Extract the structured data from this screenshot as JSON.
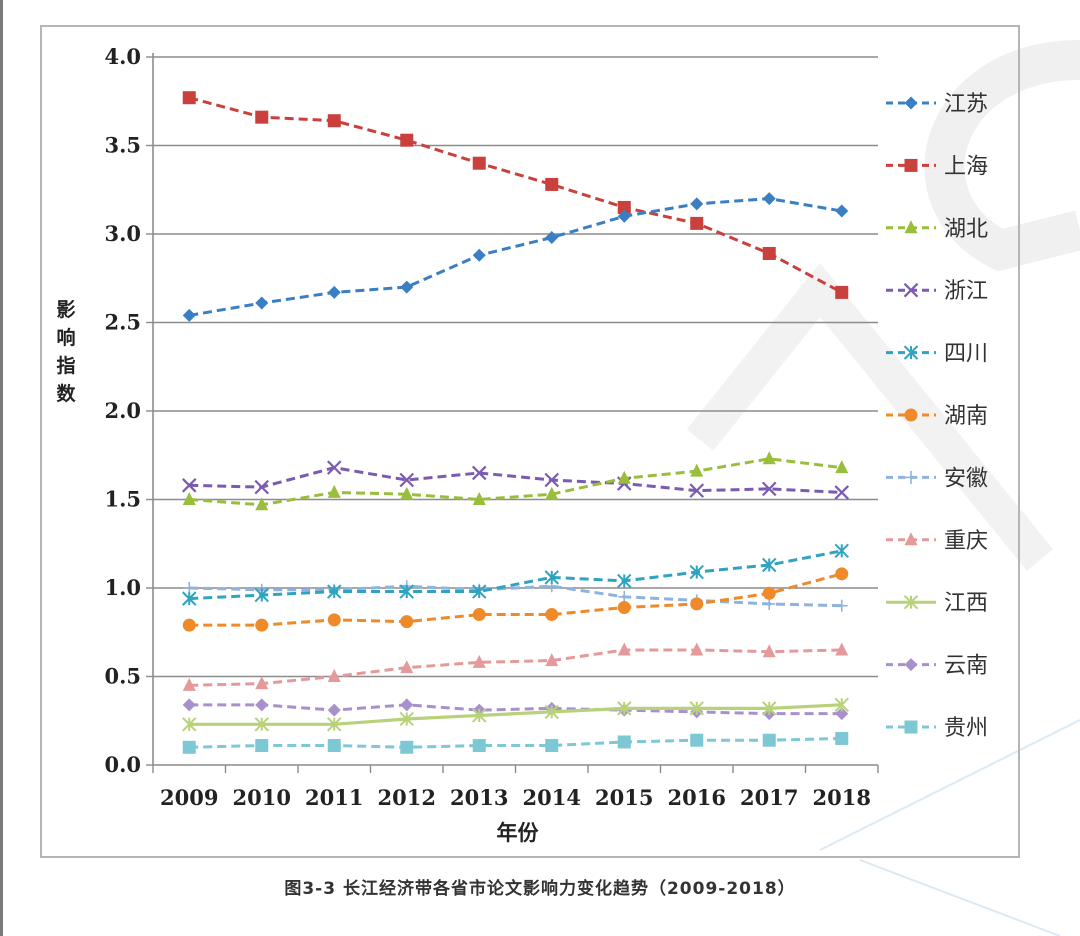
{
  "chart_data": {
    "type": "line",
    "title": "",
    "caption": "图3-3 长江经济带各省市论文影响力变化趋势（2009-2018）",
    "xlabel": "年份",
    "ylabel": "影响指数",
    "ylabel_chars": [
      "影",
      "响",
      "指",
      "数"
    ],
    "ylim": [
      0,
      4.0
    ],
    "yticks": [
      "0.0",
      "0.5",
      "1.0",
      "1.5",
      "2.0",
      "2.5",
      "3.0",
      "3.5",
      "4.0"
    ],
    "ytick_values": [
      0,
      0.5,
      1.0,
      1.5,
      2.0,
      2.5,
      3.0,
      3.5,
      4.0
    ],
    "grid": "horizontal",
    "legend_position": "right",
    "categories": [
      "2009",
      "2010",
      "2011",
      "2012",
      "2013",
      "2014",
      "2015",
      "2016",
      "2017",
      "2018"
    ],
    "series": [
      {
        "name": "江苏",
        "color": "#3a7fc4",
        "marker": "diamond",
        "dash": true,
        "values": [
          2.54,
          2.61,
          2.67,
          2.7,
          2.88,
          2.98,
          3.1,
          3.17,
          3.2,
          3.13
        ]
      },
      {
        "name": "上海",
        "color": "#c9403c",
        "marker": "square",
        "dash": true,
        "values": [
          3.77,
          3.66,
          3.64,
          3.53,
          3.4,
          3.28,
          3.15,
          3.06,
          2.89,
          2.67
        ]
      },
      {
        "name": "湖北",
        "color": "#98be3c",
        "marker": "triangle",
        "dash": true,
        "values": [
          1.5,
          1.47,
          1.54,
          1.53,
          1.5,
          1.53,
          1.62,
          1.66,
          1.73,
          1.68
        ]
      },
      {
        "name": "浙江",
        "color": "#7a5bb0",
        "marker": "x",
        "dash": true,
        "values": [
          1.58,
          1.57,
          1.68,
          1.61,
          1.65,
          1.61,
          1.59,
          1.55,
          1.56,
          1.54
        ]
      },
      {
        "name": "四川",
        "color": "#2fa3c0",
        "marker": "asterisk",
        "dash": true,
        "values": [
          0.94,
          0.96,
          0.98,
          0.98,
          0.98,
          1.06,
          1.04,
          1.09,
          1.13,
          1.21
        ]
      },
      {
        "name": "湖南",
        "color": "#ef8a2a",
        "marker": "circle",
        "dash": true,
        "values": [
          0.79,
          0.79,
          0.82,
          0.81,
          0.85,
          0.85,
          0.89,
          0.91,
          0.97,
          1.08
        ]
      },
      {
        "name": "安徽",
        "color": "#8fb2de",
        "marker": "plus",
        "dash": true,
        "values": [
          1.0,
          0.99,
          0.99,
          1.01,
          0.99,
          1.01,
          0.95,
          0.93,
          0.91,
          0.9
        ]
      },
      {
        "name": "重庆",
        "color": "#e49a9a",
        "marker": "triangle",
        "dash": true,
        "values": [
          0.45,
          0.46,
          0.5,
          0.55,
          0.58,
          0.59,
          0.65,
          0.65,
          0.64,
          0.65
        ]
      },
      {
        "name": "江西",
        "color": "#b8d27a",
        "marker": "asterisk",
        "dash": false,
        "values": [
          0.23,
          0.23,
          0.23,
          0.26,
          0.28,
          0.3,
          0.32,
          0.32,
          0.32,
          0.34
        ]
      },
      {
        "name": "云南",
        "color": "#a890cc",
        "marker": "diamond",
        "dash": true,
        "values": [
          0.34,
          0.34,
          0.31,
          0.34,
          0.31,
          0.32,
          0.31,
          0.3,
          0.29,
          0.29
        ]
      },
      {
        "name": "贵州",
        "color": "#7ec8d6",
        "marker": "square",
        "dash": true,
        "values": [
          0.1,
          0.11,
          0.11,
          0.1,
          0.11,
          0.11,
          0.13,
          0.14,
          0.14,
          0.15
        ]
      }
    ]
  }
}
